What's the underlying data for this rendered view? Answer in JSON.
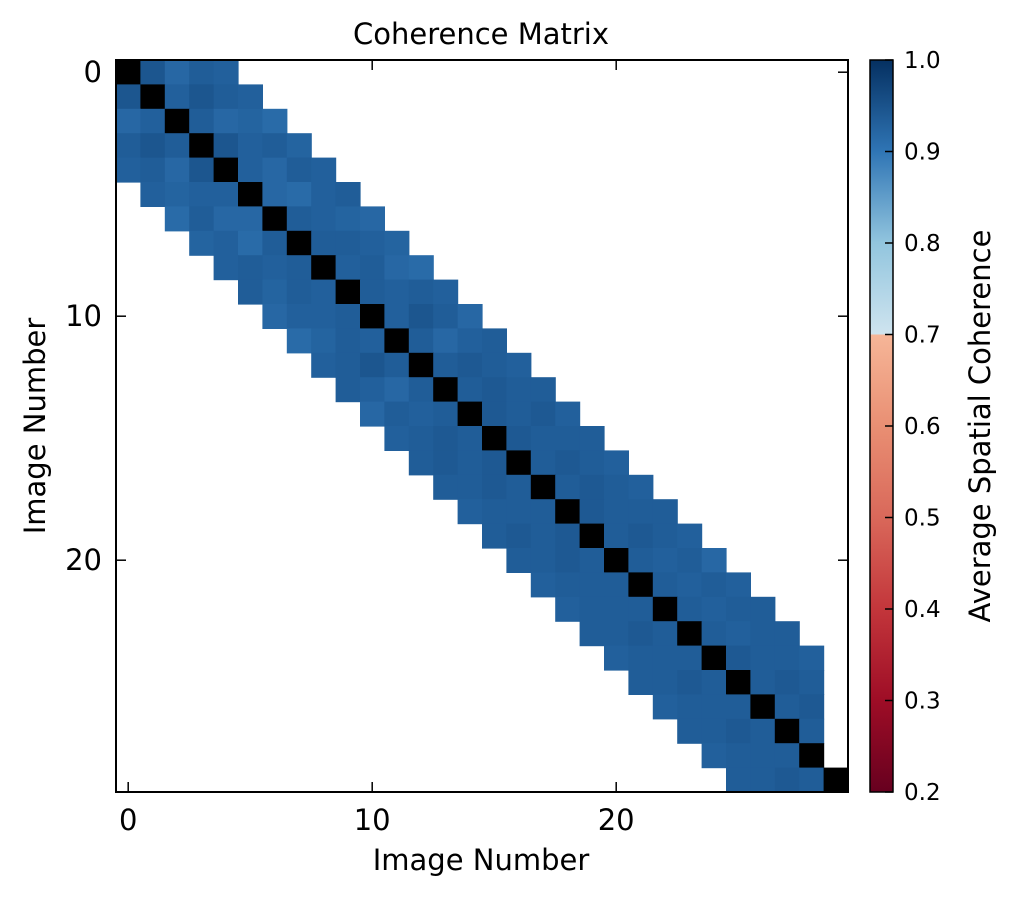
{
  "chart_data": {
    "type": "heatmap",
    "title": "Coherence Matrix",
    "xlabel": "Image Number",
    "ylabel": "Image Number",
    "n": 30,
    "bandwidth": 4,
    "x_ticks": [
      0,
      10,
      20
    ],
    "y_ticks": [
      0,
      10,
      20
    ],
    "diagonal_value": 1.0,
    "diagonal_color": "#000000",
    "colorbar": {
      "label": "Average Spatial Coherence",
      "vmin": 0.2,
      "vmax": 1.0,
      "ticks": [
        0.2,
        0.3,
        0.4,
        0.5,
        0.6,
        0.7,
        0.8,
        0.9,
        1.0
      ],
      "tick_labels": [
        "0.2",
        "0.3",
        "0.4",
        "0.5",
        "0.6",
        "0.7",
        "0.8",
        "0.9",
        "1.0"
      ],
      "stops": [
        {
          "v": 0.2,
          "color": "#67001f"
        },
        {
          "v": 0.3,
          "color": "#9e0d26"
        },
        {
          "v": 0.4,
          "color": "#c3363b"
        },
        {
          "v": 0.5,
          "color": "#d9685a"
        },
        {
          "v": 0.6,
          "color": "#e98f73"
        },
        {
          "v": 0.7,
          "color": "#f6b698"
        },
        {
          "v": 0.7001,
          "color": "#cfe4ef"
        },
        {
          "v": 0.8,
          "color": "#92c5de"
        },
        {
          "v": 0.9,
          "color": "#2f75b5"
        },
        {
          "v": 1.0,
          "color": "#053061"
        }
      ]
    },
    "rows": [
      [
        1.0,
        0.945,
        0.92,
        0.935,
        0.93
      ],
      [
        0.945,
        1.0,
        0.93,
        0.945,
        0.935,
        0.93
      ],
      [
        0.92,
        0.93,
        1.0,
        0.935,
        0.92,
        0.925,
        0.915
      ],
      [
        0.935,
        0.945,
        0.935,
        1.0,
        0.945,
        0.93,
        0.935,
        0.925
      ],
      [
        0.93,
        0.935,
        0.92,
        0.945,
        1.0,
        0.93,
        0.92,
        0.935,
        0.93
      ],
      [
        0.93,
        0.925,
        0.93,
        0.93,
        1.0,
        0.92,
        0.915,
        0.93,
        0.935
      ],
      [
        0.915,
        0.935,
        0.92,
        0.92,
        1.0,
        0.935,
        0.93,
        0.925,
        0.92
      ],
      [
        0.925,
        0.93,
        0.915,
        0.935,
        1.0,
        0.935,
        0.935,
        0.93,
        0.925
      ],
      [
        0.93,
        0.935,
        0.93,
        0.935,
        1.0,
        0.93,
        0.935,
        0.92,
        0.915
      ],
      [
        0.935,
        0.925,
        0.935,
        0.93,
        1.0,
        0.935,
        0.93,
        0.935,
        0.93
      ],
      [
        0.92,
        0.93,
        0.93,
        0.935,
        1.0,
        0.93,
        0.945,
        0.935,
        0.92
      ],
      [
        0.915,
        0.925,
        0.935,
        0.93,
        1.0,
        0.935,
        0.92,
        0.93,
        0.935
      ],
      [
        0.93,
        0.935,
        0.945,
        0.935,
        1.0,
        0.935,
        0.94,
        0.935,
        0.93
      ],
      [
        0.935,
        0.93,
        0.92,
        0.935,
        1.0,
        0.935,
        0.94,
        0.935,
        0.935
      ],
      [
        0.92,
        0.935,
        0.93,
        0.935,
        1.0,
        0.94,
        0.935,
        0.94,
        0.93
      ],
      [
        0.93,
        0.935,
        0.94,
        0.935,
        1.0,
        0.94,
        0.935,
        0.935,
        0.935
      ],
      [
        0.935,
        0.94,
        0.935,
        0.94,
        1.0,
        0.935,
        0.94,
        0.935,
        0.93
      ],
      [
        0.935,
        0.935,
        0.94,
        0.935,
        1.0,
        0.935,
        0.94,
        0.935,
        0.93
      ],
      [
        0.93,
        0.935,
        0.935,
        0.935,
        1.0,
        0.94,
        0.935,
        0.935,
        0.935
      ],
      [
        0.935,
        0.94,
        0.935,
        0.94,
        1.0,
        0.935,
        0.94,
        0.935,
        0.93
      ],
      [
        0.935,
        0.935,
        0.94,
        0.935,
        1.0,
        0.935,
        0.93,
        0.935,
        0.92
      ],
      [
        0.93,
        0.935,
        0.935,
        0.935,
        1.0,
        0.935,
        0.93,
        0.935,
        0.93
      ],
      [
        0.93,
        0.935,
        0.935,
        0.935,
        1.0,
        0.935,
        0.93,
        0.935,
        0.935
      ],
      [
        0.935,
        0.935,
        0.94,
        0.935,
        1.0,
        0.935,
        0.93,
        0.935,
        0.935
      ],
      [
        0.93,
        0.935,
        0.935,
        0.935,
        1.0,
        0.94,
        0.935,
        0.935,
        0.93
      ],
      [
        0.935,
        0.935,
        0.94,
        0.935,
        1.0,
        0.935,
        0.94,
        0.935
      ],
      [
        0.93,
        0.935,
        0.935,
        0.935,
        1.0,
        0.935,
        0.94
      ],
      [
        0.935,
        0.935,
        0.94,
        0.935,
        1.0,
        0.935
      ],
      [
        0.93,
        0.935,
        0.935,
        0.935,
        1.0
      ],
      [
        0.935,
        0.935,
        0.94,
        0.935,
        1.0
      ]
    ]
  }
}
